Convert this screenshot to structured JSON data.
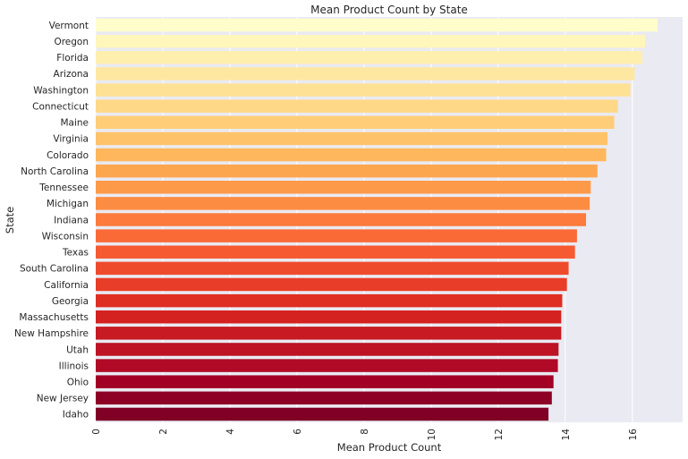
{
  "chart_data": {
    "type": "bar",
    "orientation": "horizontal",
    "title": "Mean Product Count by State",
    "xlabel": "Mean Product Count",
    "ylabel": "State",
    "xlim": [
      0,
      17.5
    ],
    "xticks": [
      0,
      2,
      4,
      6,
      8,
      10,
      12,
      14,
      16
    ],
    "xtick_labels": [
      "0",
      "2",
      "4",
      "6",
      "8",
      "10",
      "12",
      "14",
      "16"
    ],
    "grid": true,
    "categories": [
      "Vermont",
      "Oregon",
      "Florida",
      "Arizona",
      "Washington",
      "Connecticut",
      "Maine",
      "Virginia",
      "Colorado",
      "North Carolina",
      "Tennessee",
      "Michigan",
      "Indiana",
      "Wisconsin",
      "Texas",
      "South Carolina",
      "California",
      "Georgia",
      "Massachusetts",
      "New Hampshire",
      "Utah",
      "Illinois",
      "Ohio",
      "New Jersey",
      "Idaho"
    ],
    "values": [
      16.75,
      16.38,
      16.3,
      16.07,
      15.94,
      15.57,
      15.46,
      15.26,
      15.22,
      14.96,
      14.76,
      14.73,
      14.62,
      14.35,
      14.29,
      14.1,
      14.05,
      13.91,
      13.88,
      13.88,
      13.8,
      13.78,
      13.65,
      13.6,
      13.5
    ],
    "colors": [
      "#FFFECB",
      "#FFF6BB",
      "#FEEFAE",
      "#FEE8A1",
      "#FEE194",
      "#FED886",
      "#FECD78",
      "#FEC26A",
      "#FEB75D",
      "#FDA650",
      "#FD9A4A",
      "#FD8C43",
      "#FC7B3D",
      "#FA6A37",
      "#F65A31",
      "#EE4B2D",
      "#E83D28",
      "#DF2E22",
      "#D32220",
      "#C71A22",
      "#BD1324",
      "#B10A26",
      "#A30026",
      "#8E0126",
      "#800026"
    ],
    "background": "#EAEAF2"
  }
}
